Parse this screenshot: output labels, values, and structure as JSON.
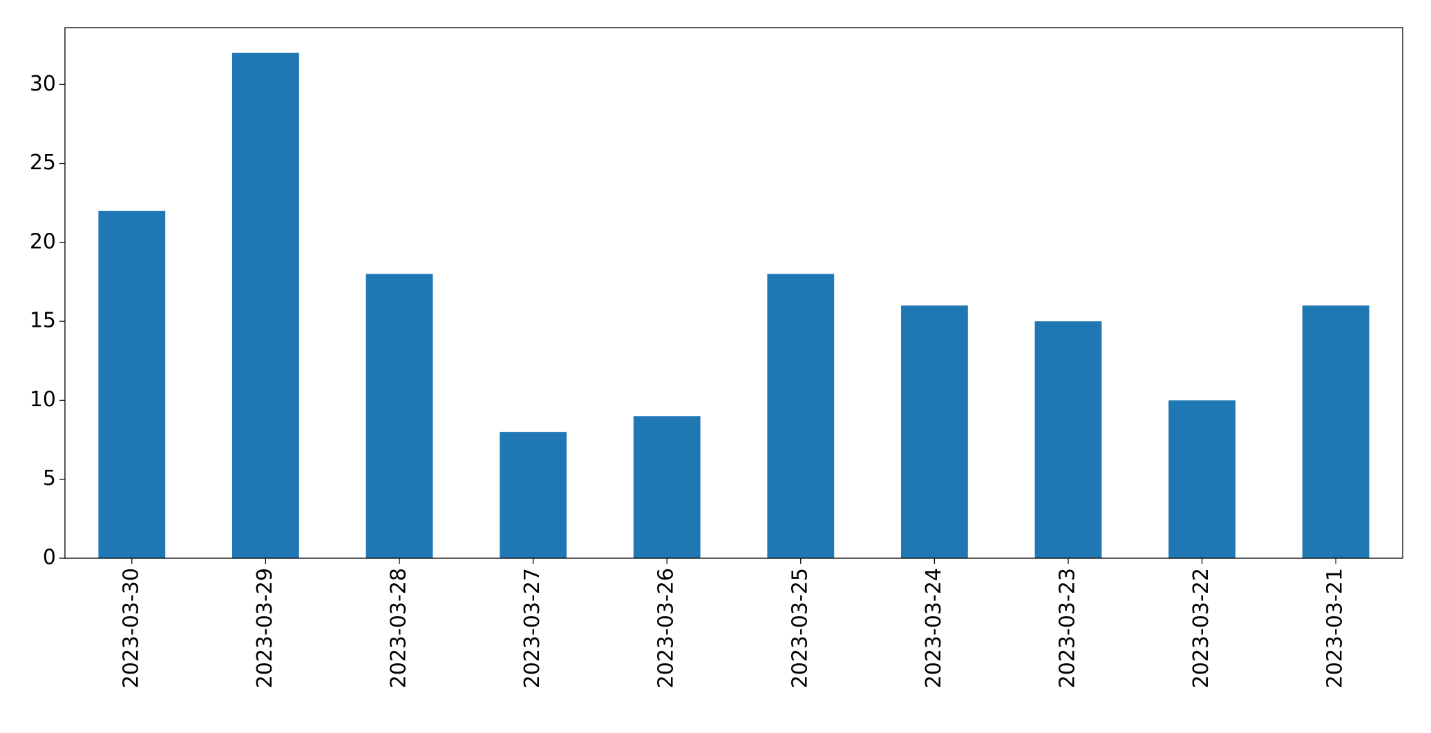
{
  "chart_data": {
    "type": "bar",
    "categories": [
      "2023-03-30",
      "2023-03-29",
      "2023-03-28",
      "2023-03-27",
      "2023-03-26",
      "2023-03-25",
      "2023-03-24",
      "2023-03-23",
      "2023-03-22",
      "2023-03-21"
    ],
    "values": [
      22,
      32,
      18,
      8,
      9,
      18,
      16,
      15,
      10,
      16
    ],
    "color": "#1f77b4",
    "ylim": [
      0,
      33.6
    ],
    "yticks": [
      0,
      5,
      10,
      15,
      20,
      25,
      30
    ],
    "grid": false
  }
}
